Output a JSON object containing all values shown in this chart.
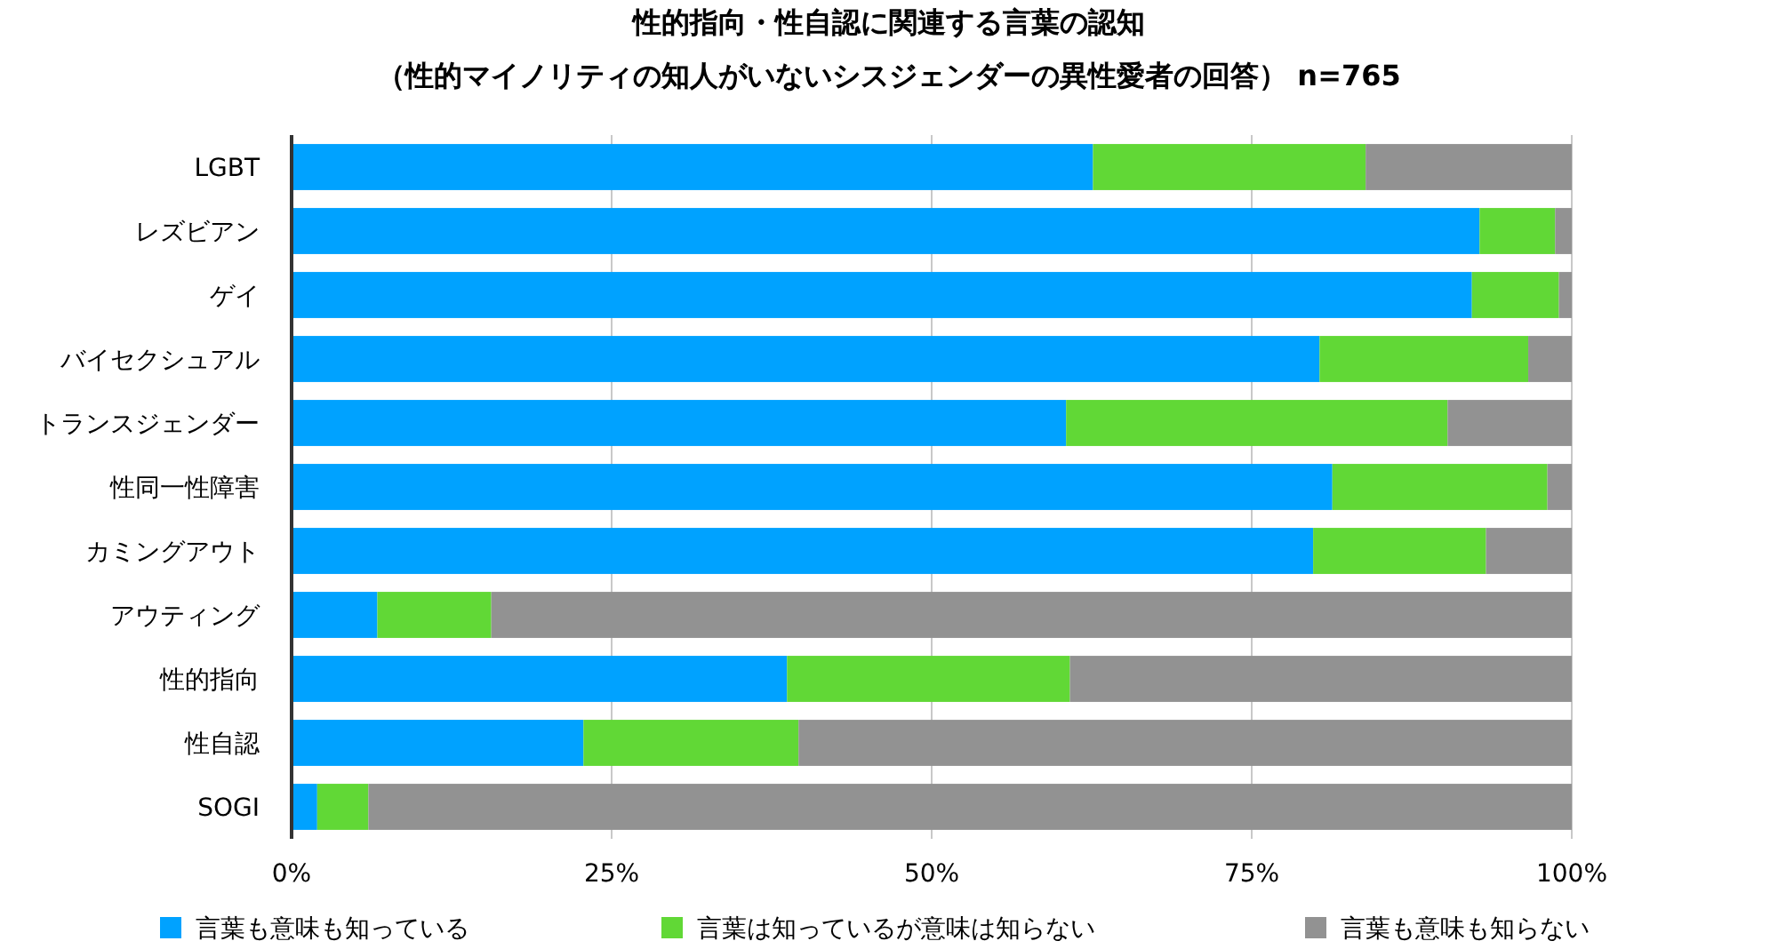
{
  "chart_data": {
    "type": "bar",
    "orientation": "horizontal",
    "stacked": true,
    "title": "性的指向・性自認に関連する言葉の認知",
    "subtitle": "（性的マイノリティの知人がいないシスジェンダーの異性愛者の回答） n=765",
    "categories": [
      "LGBT",
      "レズビアン",
      "ゲイ",
      "バイセクシュアル",
      "トランスジェンダー",
      "性同一性障害",
      "カミングアウト",
      "アウティング",
      "性的指向",
      "性自認",
      "SOGI"
    ],
    "series": [
      {
        "name": "言葉も意味も知っている",
        "color": "#00a2ff",
        "values": [
          62.6,
          92.8,
          92.2,
          80.3,
          60.5,
          81.3,
          79.8,
          6.7,
          38.7,
          22.8,
          2.0
        ]
      },
      {
        "name": "言葉は知っているが意味は知らない",
        "color": "#61d836",
        "values": [
          21.3,
          5.9,
          6.8,
          16.3,
          29.8,
          16.8,
          13.5,
          8.9,
          22.1,
          16.8,
          4.0
        ]
      },
      {
        "name": "言葉も意味も知らない",
        "color": "#929292",
        "values": [
          16.1,
          1.3,
          1.0,
          3.4,
          9.7,
          1.9,
          6.7,
          84.4,
          39.2,
          60.4,
          94.0
        ]
      }
    ],
    "xlim": [
      0,
      100
    ],
    "xticks": [
      {
        "value": 0,
        "label": "0%"
      },
      {
        "value": 25,
        "label": "25%"
      },
      {
        "value": 50,
        "label": "50%"
      },
      {
        "value": 75,
        "label": "75%"
      },
      {
        "value": 100,
        "label": "100%"
      }
    ],
    "grid": "x",
    "legend": "bottom"
  }
}
